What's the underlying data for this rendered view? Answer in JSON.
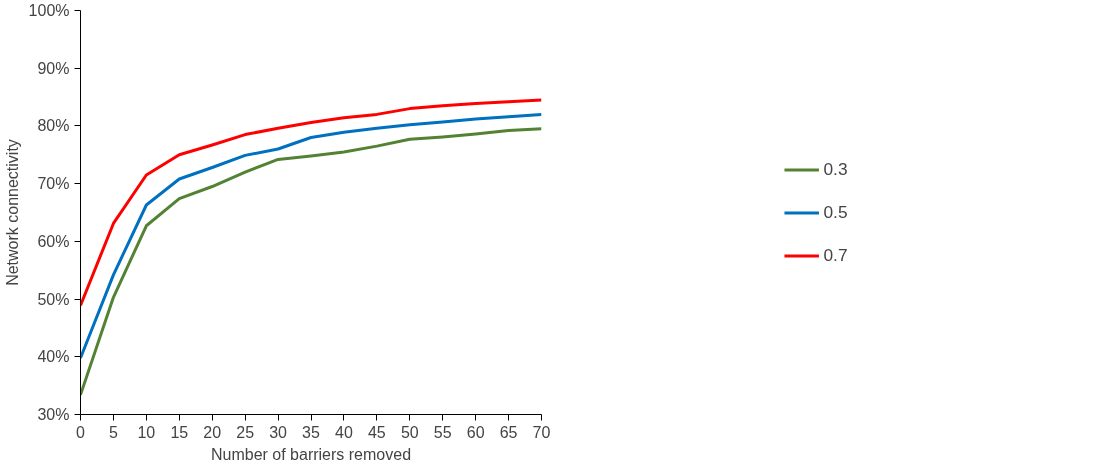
{
  "chart_data": {
    "type": "line",
    "xlabel": "Number of barriers removed",
    "ylabel": "Network connectivity",
    "x": [
      0,
      5,
      10,
      15,
      20,
      25,
      30,
      35,
      40,
      45,
      50,
      55,
      60,
      65,
      70
    ],
    "series": [
      {
        "name": "0.3",
        "color": "#548235",
        "values": [
          33.4,
          50.3,
          62.7,
          67.4,
          69.5,
          72.0,
          74.2,
          74.8,
          75.5,
          76.5,
          77.7,
          78.1,
          78.6,
          79.2,
          79.5
        ]
      },
      {
        "name": "0.5",
        "color": "#0070c0",
        "values": [
          39.8,
          54.2,
          66.3,
          70.8,
          72.8,
          74.9,
          76.0,
          78.0,
          78.9,
          79.6,
          80.2,
          80.7,
          81.2,
          81.6,
          82.0
        ]
      },
      {
        "name": "0.7",
        "color": "#ff0000",
        "values": [
          48.9,
          63.1,
          71.5,
          75.0,
          76.7,
          78.5,
          79.6,
          80.6,
          81.4,
          82.0,
          83.0,
          83.5,
          83.9,
          84.2,
          84.5
        ]
      }
    ],
    "xlim": [
      0,
      70
    ],
    "xticks": [
      0,
      5,
      10,
      15,
      20,
      25,
      30,
      35,
      40,
      45,
      50,
      55,
      60,
      65,
      70
    ],
    "ylim": [
      30,
      100
    ],
    "yticks": [
      {
        "value": 30,
        "label": "30%"
      },
      {
        "value": 40,
        "label": "40%"
      },
      {
        "value": 50,
        "label": "50%"
      },
      {
        "value": 60,
        "label": "60%"
      },
      {
        "value": 70,
        "label": "70%"
      },
      {
        "value": 80,
        "label": "80%"
      },
      {
        "value": 90,
        "label": "90%"
      },
      {
        "value": 100,
        "label": "100%"
      }
    ],
    "grid": false,
    "legend": "right",
    "marker": "none",
    "line_style": "solid"
  }
}
